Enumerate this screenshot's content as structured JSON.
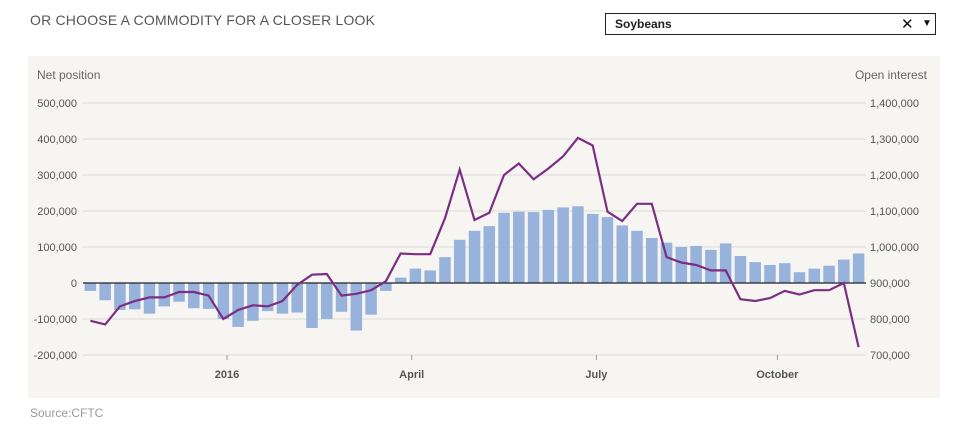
{
  "header": {
    "prompt": "OR CHOOSE A COMMODITY FOR A CLOSER LOOK"
  },
  "selector": {
    "value": "Soybeans",
    "clear_icon": "close-icon",
    "caret_icon": "caret-down-icon"
  },
  "source": "Source:CFTC",
  "colors": {
    "bars": "#97b3dc",
    "line": "#7b2e83",
    "grid": "#dddad5",
    "zero": "#222222"
  },
  "chart_data": {
    "type": "bar+line",
    "left_axis_title": "Net position",
    "right_axis_title": "Open interest",
    "left_ylim": [
      -200000,
      500000
    ],
    "right_ylim": [
      700000,
      1400000
    ],
    "left_ticks": [
      "500,000",
      "400,000",
      "300,000",
      "200,000",
      "100,000",
      "0",
      "-100,000",
      "-200,000"
    ],
    "right_ticks": [
      "1,400,000",
      "1,300,000",
      "1,200,000",
      "1,100,000",
      "1,000,000",
      "900,000",
      "800,000",
      "700,000"
    ],
    "x_labels": [
      {
        "label": "2016",
        "index": 9.25
      },
      {
        "label": "April",
        "index": 21.75
      },
      {
        "label": "July",
        "index": 34.25
      },
      {
        "label": "October",
        "index": 46.5
      }
    ],
    "grid": true,
    "series": [
      {
        "axis": "left",
        "type": "bar",
        "values": [
          -22000,
          -48000,
          -75000,
          -73000,
          -85000,
          -65000,
          -52000,
          -70000,
          -72000,
          -100000,
          -122000,
          -105000,
          -78000,
          -85000,
          -82000,
          -125000,
          -100000,
          -80000,
          -132000,
          -88000,
          -22000,
          15000,
          40000,
          35000,
          72000,
          120000,
          145000,
          158000,
          195000,
          198000,
          197000,
          203000,
          210000,
          213000,
          192000,
          183000,
          160000,
          145000,
          125000,
          112000,
          100000,
          103000,
          92000,
          110000,
          75000,
          58000,
          50000,
          55000,
          30000,
          40000,
          48000,
          65000,
          82000
        ]
      },
      {
        "axis": "right",
        "type": "line",
        "values": [
          795000,
          785000,
          835000,
          850000,
          860000,
          860000,
          875000,
          875000,
          865000,
          800000,
          825000,
          838000,
          835000,
          850000,
          895000,
          923000,
          925000,
          865000,
          870000,
          880000,
          905000,
          982000,
          980000,
          980000,
          1080000,
          1215000,
          1075000,
          1095000,
          1200000,
          1232000,
          1188000,
          1218000,
          1252000,
          1303000,
          1282000,
          1098000,
          1072000,
          1120000,
          1120000,
          972000,
          957000,
          950000,
          935000,
          935000,
          855000,
          850000,
          858000,
          878000,
          868000,
          880000,
          880000,
          900000,
          722000
        ]
      }
    ]
  }
}
